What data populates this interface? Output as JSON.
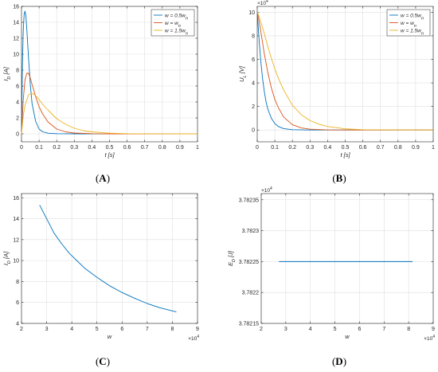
{
  "chart_data": [
    {
      "panel": "A",
      "caption": {
        "open": "(",
        "letter": "A",
        "close": ")"
      },
      "type": "line",
      "xlabel": "t [s]",
      "ylabel": "I_D [A]",
      "xlim": [
        0,
        1
      ],
      "ylim": [
        -1,
        16
      ],
      "xticks": [
        0,
        0.1,
        0.2,
        0.3,
        0.4,
        0.5,
        0.6,
        0.7,
        0.8,
        0.9,
        1
      ],
      "xtick_labels": [
        "0",
        "0.1",
        "0.2",
        "0.3",
        "0.4",
        "0.5",
        "0.6",
        "0.7",
        "0.8",
        "0.9",
        "1"
      ],
      "yticks": [
        0,
        2,
        4,
        6,
        8,
        10,
        12,
        14,
        16
      ],
      "ytick_labels": [
        "0",
        "2",
        "4",
        "6",
        "8",
        "10",
        "12",
        "14",
        "16"
      ],
      "grid": true,
      "legend_position": "top-right",
      "series": [
        {
          "name": "w = 0.5w_n",
          "color": "#0072BD",
          "x": [
            0,
            0.005,
            0.01,
            0.015,
            0.02,
            0.025,
            0.03,
            0.04,
            0.05,
            0.06,
            0.08,
            0.1,
            0.12,
            0.15,
            0.2,
            0.3,
            0.5,
            1
          ],
          "y": [
            0,
            8.5,
            13.0,
            15.0,
            15.4,
            14.8,
            13.2,
            9.5,
            6.2,
            3.8,
            1.6,
            0.6,
            0.25,
            0.08,
            0.02,
            0,
            0,
            0
          ]
        },
        {
          "name": "w = w_n",
          "color": "#D95319",
          "x": [
            0,
            0.01,
            0.02,
            0.03,
            0.04,
            0.05,
            0.06,
            0.08,
            0.1,
            0.12,
            0.15,
            0.2,
            0.25,
            0.3,
            0.4,
            0.5,
            1
          ],
          "y": [
            0,
            4.3,
            6.8,
            7.6,
            7.6,
            7.0,
            6.2,
            4.7,
            3.4,
            2.5,
            1.5,
            0.6,
            0.25,
            0.1,
            0.02,
            0,
            0
          ]
        },
        {
          "name": "w = 1.5w_n",
          "color": "#EDB120",
          "x": [
            0,
            0.01,
            0.02,
            0.04,
            0.06,
            0.08,
            0.1,
            0.12,
            0.15,
            0.2,
            0.25,
            0.3,
            0.35,
            0.4,
            0.5,
            0.6,
            1
          ],
          "y": [
            0,
            2.3,
            3.6,
            4.9,
            5.1,
            4.8,
            4.3,
            3.7,
            3.0,
            1.9,
            1.2,
            0.7,
            0.4,
            0.25,
            0.08,
            0.02,
            0
          ]
        }
      ]
    },
    {
      "panel": "B",
      "caption": {
        "open": "(",
        "letter": "B",
        "close": ")"
      },
      "type": "line",
      "xlabel": "t [s]",
      "ylabel": "U_L [V]",
      "y_exponent": "×10^4",
      "xlim": [
        0,
        1
      ],
      "ylim": [
        -1,
        10.5
      ],
      "xticks": [
        0,
        0.1,
        0.2,
        0.3,
        0.4,
        0.5,
        0.6,
        0.7,
        0.8,
        0.9,
        1
      ],
      "xtick_labels": [
        "0",
        "0.1",
        "0.2",
        "0.3",
        "0.4",
        "0.5",
        "0.6",
        "0.7",
        "0.8",
        "0.9",
        "1"
      ],
      "yticks": [
        0,
        2,
        4,
        6,
        8,
        10
      ],
      "ytick_labels": [
        "0",
        "2",
        "4",
        "6",
        "8",
        "10"
      ],
      "grid": true,
      "legend_position": "top-right",
      "series": [
        {
          "name": "w = 0.5w_n",
          "color": "#0072BD",
          "x": [
            0,
            0.01,
            0.02,
            0.03,
            0.04,
            0.05,
            0.06,
            0.08,
            0.1,
            0.12,
            0.15,
            0.2,
            0.3,
            0.5,
            1
          ],
          "y": [
            10,
            7.8,
            5.9,
            4.4,
            3.3,
            2.4,
            1.8,
            1.0,
            0.55,
            0.3,
            0.12,
            0.03,
            0,
            0,
            0
          ]
        },
        {
          "name": "w = w_n",
          "color": "#D95319",
          "x": [
            0,
            0.01,
            0.02,
            0.04,
            0.06,
            0.08,
            0.1,
            0.12,
            0.15,
            0.2,
            0.25,
            0.3,
            0.4,
            0.5,
            1
          ],
          "y": [
            10,
            9.3,
            8.4,
            6.5,
            4.9,
            3.6,
            2.6,
            1.9,
            1.1,
            0.45,
            0.18,
            0.07,
            0.01,
            0,
            0
          ]
        },
        {
          "name": "w = 1.5w_n",
          "color": "#EDB120",
          "x": [
            0,
            0.01,
            0.02,
            0.04,
            0.06,
            0.08,
            0.1,
            0.12,
            0.15,
            0.2,
            0.25,
            0.3,
            0.35,
            0.4,
            0.5,
            0.6,
            1
          ],
          "y": [
            10,
            9.7,
            9.2,
            8.2,
            7.1,
            6.1,
            5.2,
            4.4,
            3.4,
            2.1,
            1.3,
            0.8,
            0.5,
            0.3,
            0.1,
            0.03,
            0
          ]
        }
      ]
    },
    {
      "panel": "C",
      "caption": {
        "open": "(",
        "letter": "C",
        "close": ")"
      },
      "type": "line",
      "xlabel": "w",
      "ylabel": "I_D [A]",
      "x_exponent": "×10^4",
      "xlim": [
        2,
        9
      ],
      "ylim": [
        4,
        16.4
      ],
      "xticks": [
        2,
        3,
        4,
        5,
        6,
        7,
        8,
        9
      ],
      "xtick_labels": [
        "2",
        "3",
        "4",
        "5",
        "6",
        "7",
        "8",
        "9"
      ],
      "yticks": [
        4,
        6,
        8,
        10,
        12,
        14,
        16
      ],
      "ytick_labels": [
        "4",
        "6",
        "8",
        "10",
        "12",
        "14",
        "16"
      ],
      "grid": true,
      "series": [
        {
          "name": "",
          "color": "#0072BD",
          "x": [
            2.72,
            3.0,
            3.3,
            3.6,
            3.9,
            4.2,
            4.5,
            5.0,
            5.5,
            6.0,
            6.5,
            7.0,
            7.5,
            8.16
          ],
          "y": [
            15.3,
            14.0,
            12.6,
            11.6,
            10.7,
            10.0,
            9.3,
            8.4,
            7.6,
            6.95,
            6.4,
            5.9,
            5.5,
            5.1
          ]
        }
      ]
    },
    {
      "panel": "D",
      "caption": {
        "open": "(",
        "letter": "D",
        "close": ")"
      },
      "type": "line",
      "xlabel": "w",
      "ylabel": "E_D [J]",
      "x_exponent": "×10^4",
      "y_exponent": "×10^4",
      "xlim": [
        2,
        9
      ],
      "ylim": [
        3.78215,
        3.78236
      ],
      "xticks": [
        2,
        3,
        4,
        5,
        6,
        7,
        8,
        9
      ],
      "xtick_labels": [
        "2",
        "3",
        "4",
        "5",
        "6",
        "7",
        "8",
        "9"
      ],
      "yticks": [
        3.78215,
        3.7822,
        3.78225,
        3.7823,
        3.78235
      ],
      "ytick_labels": [
        "3.78215",
        "3.7822",
        "3.78225",
        "3.7823",
        "3.78235"
      ],
      "grid": true,
      "series": [
        {
          "name": "",
          "color": "#0072BD",
          "x": [
            2.72,
            8.16
          ],
          "y": [
            3.78225,
            3.78225
          ]
        }
      ]
    }
  ]
}
